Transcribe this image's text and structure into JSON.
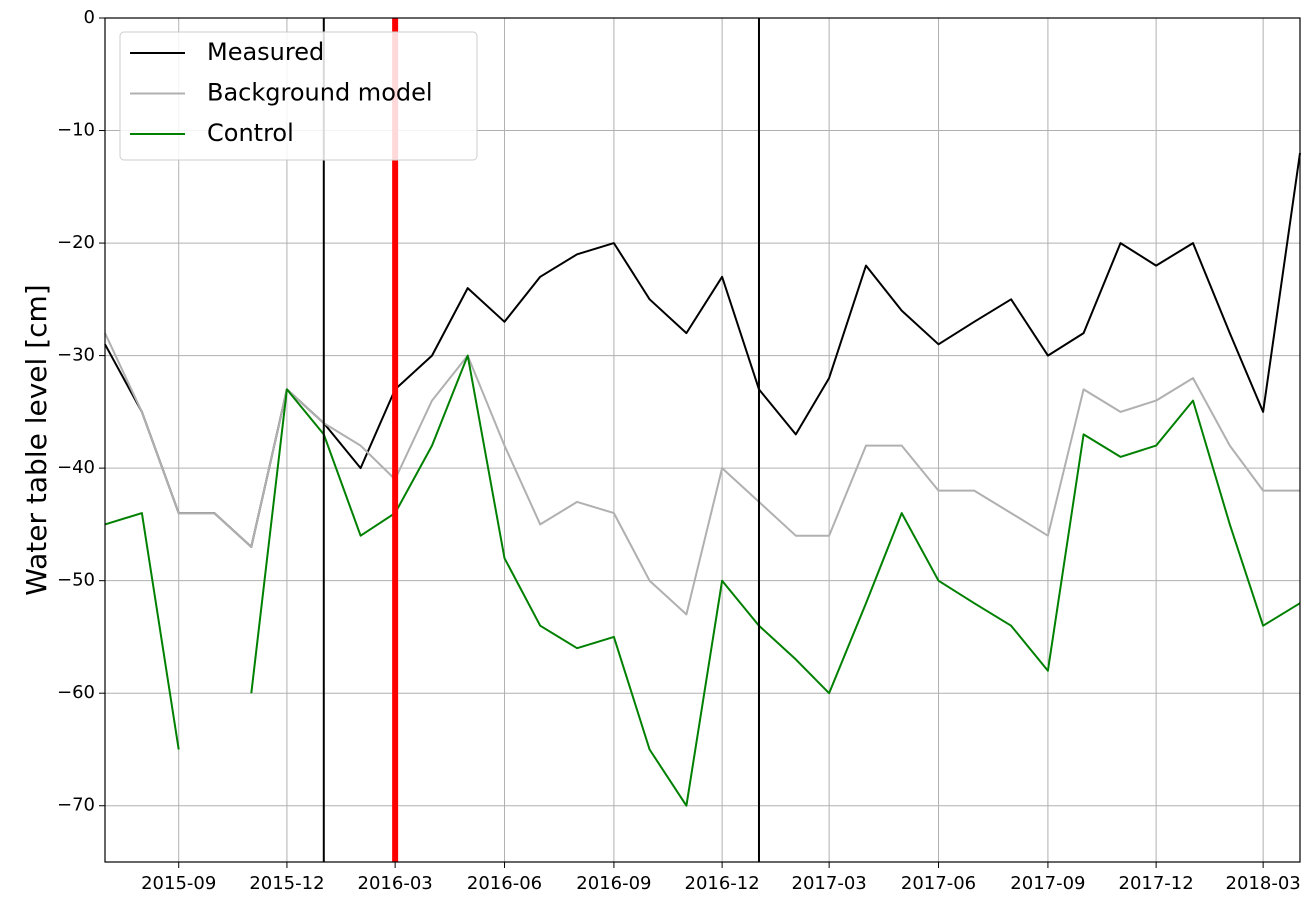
{
  "chart_data": {
    "type": "line",
    "y_label": "Water table level [cm]",
    "x": [
      "2015-07",
      "2015-08",
      "2015-09",
      "2015-10",
      "2015-11",
      "2015-12",
      "2016-01",
      "2016-02",
      "2016-03",
      "2016-04",
      "2016-05",
      "2016-06",
      "2016-07",
      "2016-08",
      "2016-09",
      "2016-10",
      "2016-11",
      "2016-12",
      "2017-01",
      "2017-02",
      "2017-03",
      "2017-04",
      "2017-05",
      "2017-06",
      "2017-07",
      "2017-08",
      "2017-09",
      "2017-10",
      "2017-11",
      "2017-12",
      "2018-01",
      "2018-02",
      "2018-03",
      "2018-04"
    ],
    "series": [
      {
        "name": "Measured",
        "color": "#000000",
        "values": [
          -29,
          -35,
          -44,
          -44,
          -47,
          -33,
          -36,
          -40,
          -33,
          -30,
          -24,
          -27,
          -23,
          -21,
          -20,
          -25,
          -28,
          -23,
          -33,
          -37,
          -32,
          -22,
          -26,
          -29,
          -27,
          -25,
          -30,
          -28,
          -20,
          -22,
          -20,
          -28,
          -35,
          -12
        ]
      },
      {
        "name": "Background model",
        "color": "#b0b0b0",
        "values": [
          -28,
          -35,
          -44,
          -44,
          -47,
          -33,
          -36,
          -38,
          -41,
          -34,
          -30,
          -38,
          -45,
          -43,
          -44,
          -50,
          -53,
          -40,
          -43,
          -46,
          -46,
          -38,
          -38,
          -42,
          -42,
          -44,
          -46,
          -33,
          -35,
          -34,
          -32,
          -38,
          -42,
          -42
        ]
      },
      {
        "name": "Control",
        "color": "#008000",
        "values": [
          -45,
          -44,
          -65,
          null,
          -60,
          -33,
          -37,
          -46,
          -44,
          -38,
          -30,
          -48,
          -54,
          -56,
          -55,
          -65,
          -70,
          -50,
          -54,
          -57,
          -60,
          -52,
          -44,
          -50,
          -52,
          -54,
          -58,
          -37,
          -39,
          -38,
          -34,
          -45,
          -54,
          -52
        ]
      }
    ],
    "vlines": [
      {
        "x": "2016-01",
        "color": "#000000"
      },
      {
        "x": "2016-03",
        "color": "#ff0000"
      },
      {
        "x": "2017-01",
        "color": "#000000"
      }
    ],
    "xlim": [
      "2015-07",
      "2018-04"
    ],
    "xticks": [
      "2015-09",
      "2015-12",
      "2016-03",
      "2016-06",
      "2016-09",
      "2016-12",
      "2017-03",
      "2017-06",
      "2017-09",
      "2017-12",
      "2018-03"
    ],
    "ylim": [
      -75,
      0
    ],
    "yticks": [
      {
        "value": -70,
        "label": "−70"
      },
      {
        "value": -60,
        "label": "−60"
      },
      {
        "value": -50,
        "label": "−50"
      },
      {
        "value": -40,
        "label": "−40"
      },
      {
        "value": -30,
        "label": "−30"
      },
      {
        "value": -20,
        "label": "−20"
      },
      {
        "value": -10,
        "label": "−10"
      },
      0
    ],
    "grid": true,
    "legend": "upper-left"
  }
}
